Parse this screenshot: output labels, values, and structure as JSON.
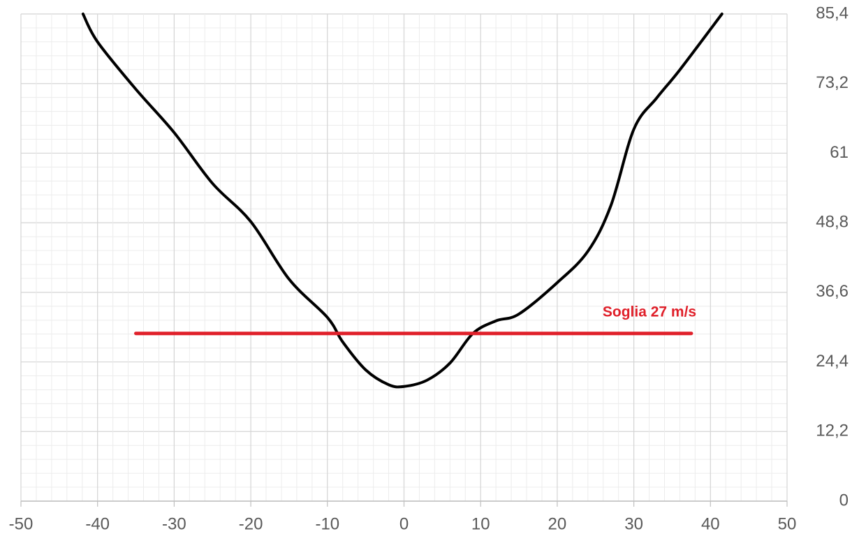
{
  "chart_data": {
    "type": "line",
    "xlim": [
      -50,
      50
    ],
    "xticks": [
      -50,
      -40,
      -30,
      -20,
      -10,
      0,
      10,
      20,
      30,
      40,
      50
    ],
    "ylim": [
      0,
      85.4
    ],
    "yticks": [
      0,
      {
        "value": 12.2,
        "label": "12,2"
      },
      {
        "value": 24.4,
        "label": "24,4"
      },
      {
        "value": 36.6,
        "label": "36,6"
      },
      {
        "value": 48.8,
        "label": "48,8"
      },
      61,
      {
        "value": 73.2,
        "label": "73,2"
      },
      {
        "value": 85.4,
        "label": "85,4"
      }
    ],
    "grid": true,
    "minor_divisions": 5,
    "y_axis_side": "right",
    "annotation": "Soglia 27 m/s",
    "series": [
      {
        "color": "#000000",
        "smooth": true,
        "x": [
          -41.9,
          -40,
          -35,
          -30,
          -25,
          -20,
          -15,
          -10,
          -8,
          -5,
          -2,
          0,
          3,
          6,
          9,
          12,
          15,
          20,
          24,
          27,
          30,
          33,
          36,
          41.5
        ],
        "values": [
          85.4,
          80.5,
          72.2,
          64.6,
          55.7,
          49,
          38.9,
          32.2,
          27.9,
          23,
          20.4,
          20.1,
          21.2,
          24.2,
          29.4,
          31.6,
          32.8,
          38.3,
          43.8,
          51.8,
          65.2,
          70.7,
          75.6,
          85.4
        ]
      },
      {
        "color": "#e0202a",
        "smooth": false,
        "x": [
          -35,
          37.5
        ],
        "values": [
          29.4,
          29.4
        ]
      }
    ]
  }
}
